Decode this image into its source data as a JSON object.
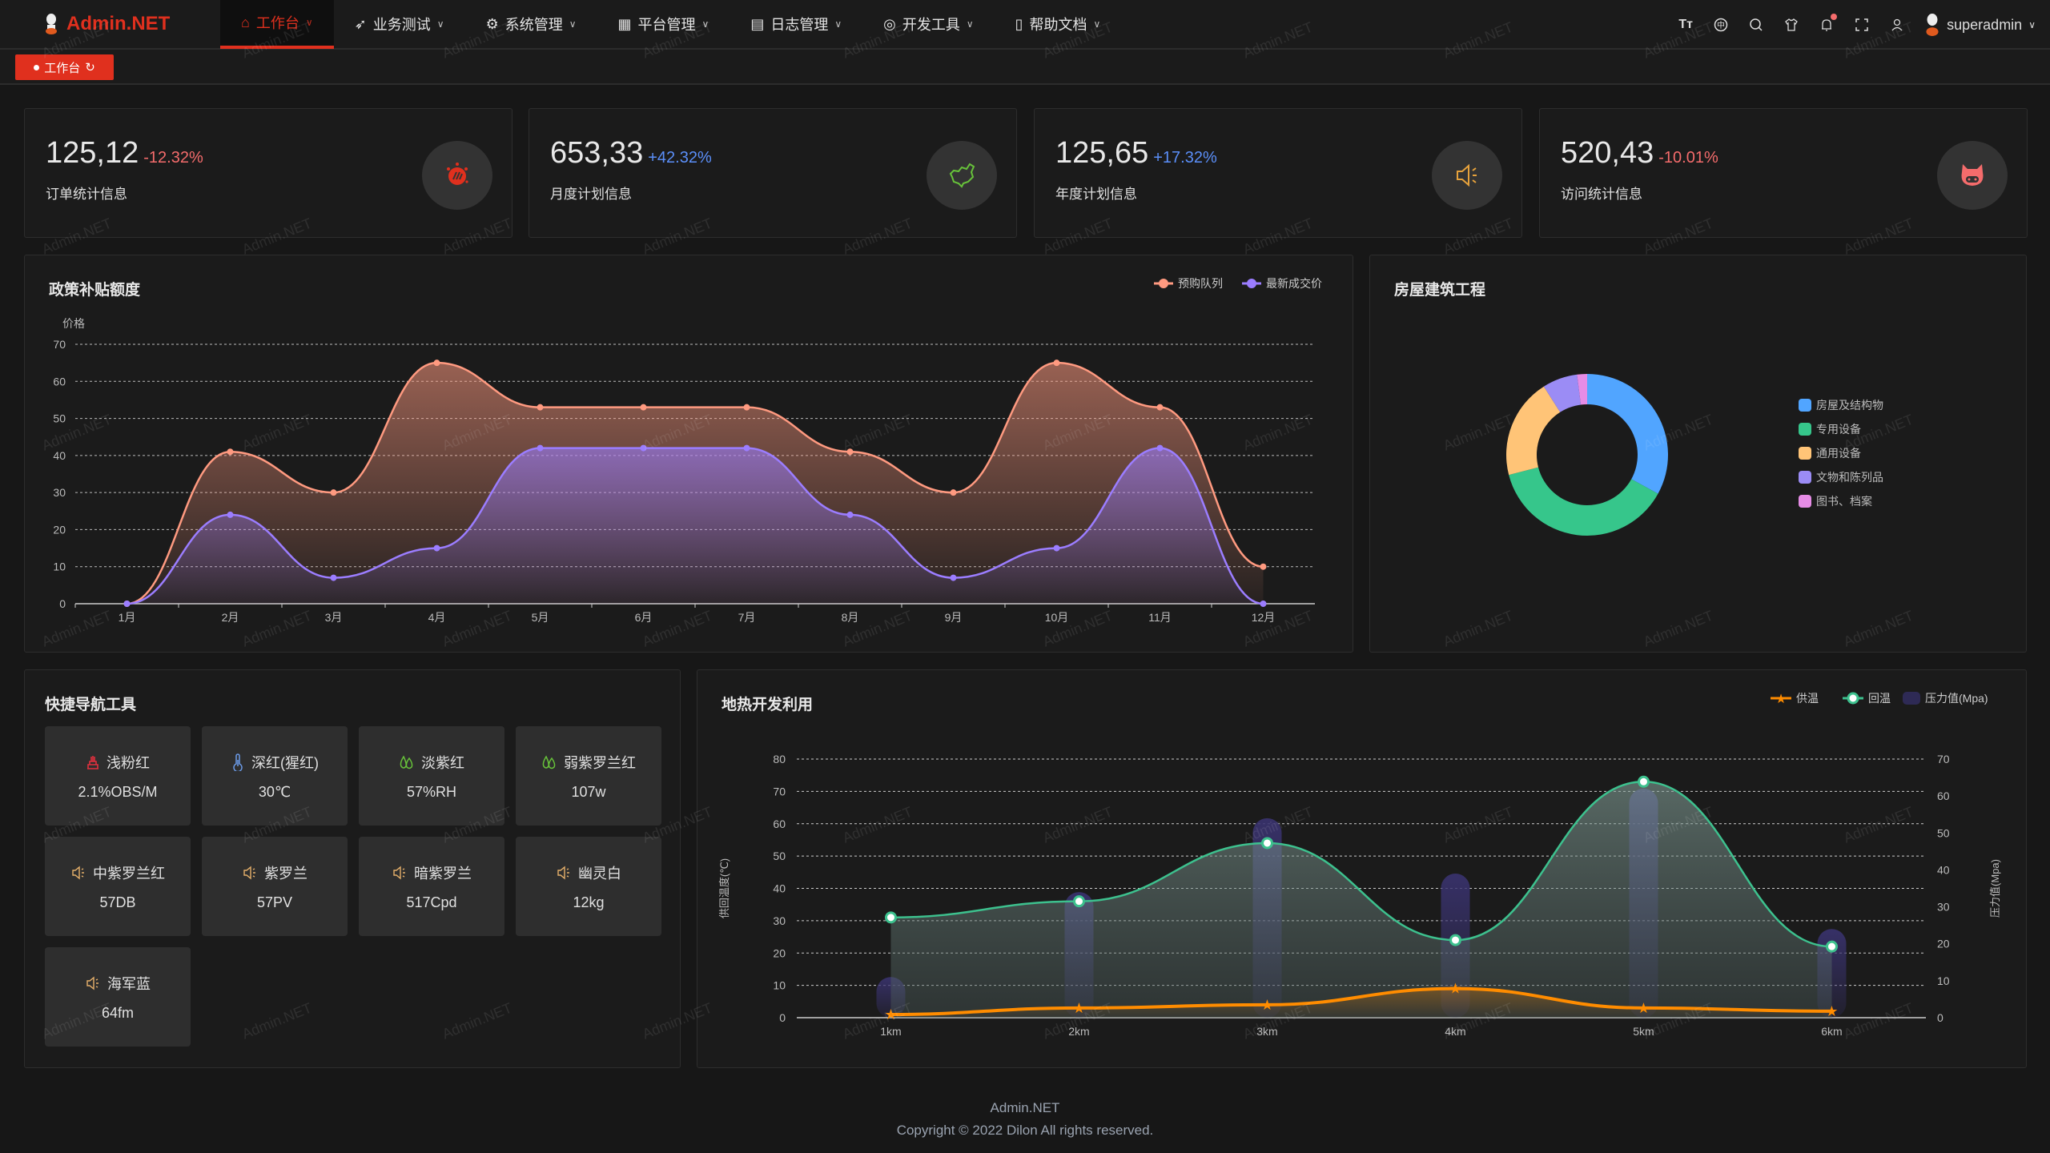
{
  "app": {
    "name": "Admin.NET",
    "user": "superadmin",
    "watermark": "Admin.NET"
  },
  "nav": {
    "items": [
      {
        "label": "工作台",
        "icon": "home-icon",
        "active": true
      },
      {
        "label": "业务测试",
        "icon": "send-icon"
      },
      {
        "label": "系统管理",
        "icon": "gear-icon"
      },
      {
        "label": "平台管理",
        "icon": "grid-icon"
      },
      {
        "label": "日志管理",
        "icon": "document-icon"
      },
      {
        "label": "开发工具",
        "icon": "chip-icon"
      },
      {
        "label": "帮助文档",
        "icon": "book-icon"
      }
    ]
  },
  "toolbar": {
    "icons": [
      "font-size-icon",
      "language-icon",
      "search-icon",
      "skin-icon",
      "bell-icon",
      "fullscreen-icon",
      "user-icon"
    ],
    "notification_dot": true
  },
  "tags": [
    {
      "label": "工作台",
      "active": true
    }
  ],
  "stats": [
    {
      "value": "125,12",
      "change": "-12.32%",
      "label": "订单统计信息",
      "icon": "fist-icon",
      "change_color": "#f56c6c",
      "icon_color": "#e0301e"
    },
    {
      "value": "653,33",
      "change": "+42.32%",
      "label": "月度计划信息",
      "icon": "china-map-icon",
      "change_color": "#5b8ff9",
      "icon_color": "#67c23a"
    },
    {
      "value": "125,65",
      "change": "+17.32%",
      "label": "年度计划信息",
      "icon": "speaker-icon",
      "change_color": "#5b8ff9",
      "icon_color": "#e6a23c"
    },
    {
      "value": "520,43",
      "change": "-10.01%",
      "label": "访问统计信息",
      "icon": "pig-icon",
      "change_color": "#f56c6c",
      "icon_color": "#f56c6c"
    }
  ],
  "policy": {
    "title": "政策补贴额度"
  },
  "house": {
    "title": "房屋建筑工程"
  },
  "quicknav": {
    "title": "快捷导航工具",
    "items": [
      {
        "label": "浅粉红",
        "value": "2.1%OBS/M",
        "icon": "cake-icon",
        "color": "#e0303e"
      },
      {
        "label": "深红(猩红)",
        "value": "30℃",
        "icon": "thermometer-icon",
        "color": "#6b9be8"
      },
      {
        "label": "淡紫红",
        "value": "57%RH",
        "icon": "water-drop-icon",
        "color": "#67c23a"
      },
      {
        "label": "弱紫罗兰红",
        "value": "107w",
        "icon": "water-drop-icon",
        "color": "#67c23a"
      },
      {
        "label": "中紫罗兰红",
        "value": "57DB",
        "icon": "speaker-icon",
        "color": "#e6b06a"
      },
      {
        "label": "紫罗兰",
        "value": "57PV",
        "icon": "speaker-icon",
        "color": "#e6b06a"
      },
      {
        "label": "暗紫罗兰",
        "value": "517Cpd",
        "icon": "speaker-icon",
        "color": "#e6b06a"
      },
      {
        "label": "幽灵白",
        "value": "12kg",
        "icon": "speaker-icon",
        "color": "#e6b06a"
      },
      {
        "label": "海军蓝",
        "value": "64fm",
        "icon": "speaker-icon",
        "color": "#e6b06a"
      }
    ]
  },
  "geo": {
    "title": "地热开发利用"
  },
  "footer": {
    "line1": "Admin.NET",
    "line2": "Copyright © 2022 Dilon All rights reserved."
  },
  "chart_data": [
    {
      "type": "area",
      "title": "政策补贴额度",
      "ylabel": "价格",
      "ylim": [
        0,
        70
      ],
      "yticks": [
        0,
        10,
        20,
        30,
        40,
        50,
        60,
        70
      ],
      "grid": true,
      "legend": "top-right",
      "categories": [
        "1月",
        "2月",
        "3月",
        "4月",
        "5月",
        "6月",
        "7月",
        "8月",
        "9月",
        "10月",
        "11月",
        "12月"
      ],
      "series": [
        {
          "name": "预购队列",
          "color": "#ff9a80",
          "values": [
            0,
            41,
            30,
            65,
            53,
            53,
            53,
            41,
            30,
            65,
            53,
            10
          ]
        },
        {
          "name": "最新成交价",
          "color": "#9b7dff",
          "values": [
            0,
            24,
            7,
            15,
            42,
            42,
            42,
            24,
            7,
            15,
            42,
            0
          ]
        }
      ]
    },
    {
      "type": "pie",
      "title": "房屋建筑工程",
      "legend": "right",
      "donut": true,
      "series": [
        {
          "name": "房屋及结构物",
          "color": "#51a5ff",
          "value": 33
        },
        {
          "name": "专用设备",
          "color": "#36c68b",
          "value": 38
        },
        {
          "name": "通用设备",
          "color": "#ffc477",
          "value": 20
        },
        {
          "name": "文物和陈列品",
          "color": "#9b8cf5",
          "value": 7
        },
        {
          "name": "图书、档案",
          "color": "#e68ce6",
          "value": 2
        }
      ]
    },
    {
      "type": "line",
      "title": "地热开发利用",
      "legend": "top-right",
      "grid": true,
      "categories": [
        "1km",
        "2km",
        "3km",
        "4km",
        "5km",
        "6km"
      ],
      "ylabel": "供回温度(℃)",
      "ylim": [
        0,
        80
      ],
      "yticks": [
        0,
        10,
        20,
        30,
        40,
        50,
        60,
        70,
        80
      ],
      "y2label": "压力值(Mpa)",
      "y2lim": [
        0,
        70
      ],
      "y2ticks": [
        0,
        10,
        20,
        30,
        40,
        50,
        60,
        70
      ],
      "series": [
        {
          "name": "供温",
          "type": "line",
          "axis": "left",
          "color": "#ff8c00",
          "values": [
            1,
            3,
            4,
            9,
            3,
            2
          ]
        },
        {
          "name": "回温",
          "type": "line",
          "axis": "left",
          "color": "#3dc18e",
          "values": [
            31,
            36,
            54,
            24,
            73,
            22
          ]
        },
        {
          "name": "压力值(Mpa)",
          "type": "bar",
          "axis": "right",
          "color": "#3b3566",
          "values": [
            11,
            34,
            54,
            39,
            62,
            24
          ]
        }
      ]
    }
  ]
}
